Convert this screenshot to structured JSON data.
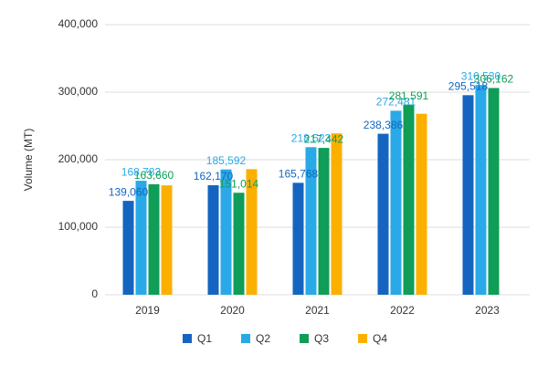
{
  "chart_data": {
    "type": "bar",
    "y_label": "Volume (MT)",
    "categories": [
      "2019",
      "2020",
      "2021",
      "2022",
      "2023"
    ],
    "series": [
      {
        "name": "Q1",
        "color": "#1565c0",
        "values": [
          139060,
          162170,
          165768,
          238386,
          295518
        ],
        "value_labels": [
          "139,060",
          "162,170",
          "165,768",
          "238,386",
          "295,518"
        ]
      },
      {
        "name": "Q2",
        "color": "#29a9e8",
        "values": [
          168783,
          185592,
          218523,
          272481,
          310530
        ],
        "value_labels": [
          "168,783",
          "185,592",
          "218,523",
          "272,481",
          "310,530"
        ]
      },
      {
        "name": "Q3",
        "color": "#0f9d58",
        "values": [
          163660,
          151014,
          217442,
          281591,
          306162
        ],
        "value_labels": [
          "163,660",
          "151,014",
          "217,442",
          "281,591",
          "306,162"
        ]
      },
      {
        "name": "Q4",
        "color": "#fbb000",
        "values": [
          162000,
          186000,
          239000,
          268000,
          null
        ],
        "value_labels": [
          null,
          null,
          null,
          null,
          null
        ]
      }
    ],
    "ylim": [
      0,
      400000
    ],
    "yticks": [
      0,
      {
        "value": 100000,
        "label": "100,000"
      },
      {
        "value": 200000,
        "label": "200,000"
      },
      {
        "value": 300000,
        "label": "300,000"
      },
      {
        "value": 400000,
        "label": "400,000"
      }
    ],
    "grid": true,
    "legend": "bottom"
  }
}
